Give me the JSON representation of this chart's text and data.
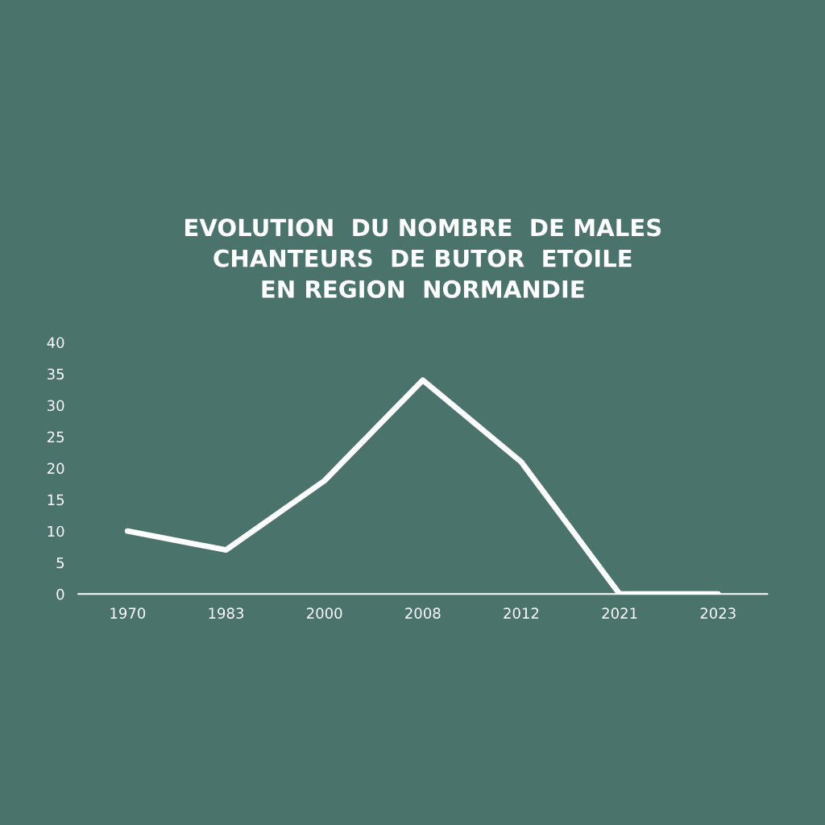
{
  "chart_data": {
    "type": "line",
    "title": "EVOLUTION  DU NOMBRE  DE MALES\nCHANTEURS  DE BUTOR  ETOILE\nEN REGION  NORMANDIE",
    "categories": [
      "1970",
      "1983",
      "2000",
      "2008",
      "2012",
      "2021",
      "2023"
    ],
    "series": [
      {
        "color": "#ffffff",
        "values": [
          10,
          7,
          18,
          34,
          21,
          0,
          0
        ]
      }
    ],
    "ylim": [
      0,
      40
    ],
    "yticks": [
      0,
      5,
      10,
      15,
      20,
      25,
      30,
      35,
      40
    ],
    "grid": false,
    "legend": false,
    "marker": "none",
    "line_style": "solid"
  }
}
